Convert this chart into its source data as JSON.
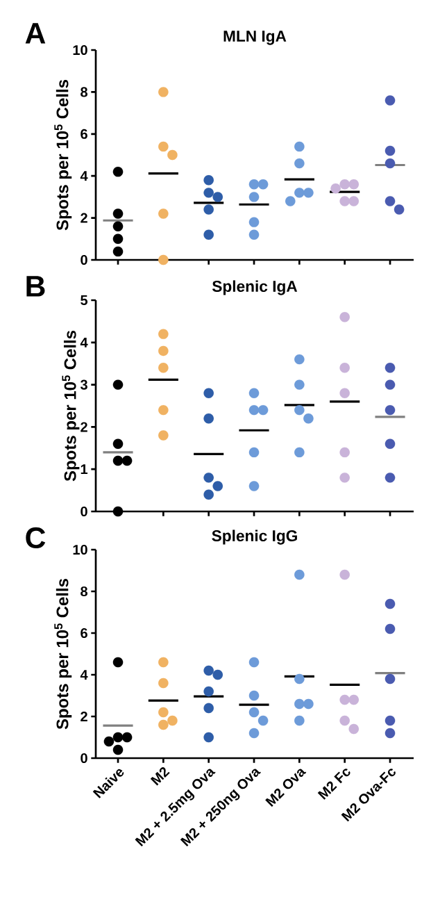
{
  "chart_data": [
    {
      "type": "scatter",
      "title": "MLN IgA",
      "ylabel": "Spots per 10$^{5}$ Cells",
      "annotations": [
        "A"
      ],
      "categories": [
        "Naive",
        "M2",
        "M2 + 2.5mg Ova",
        "M2 + 250ng Ova",
        "M2 Ova",
        "M2 Fc",
        "M2 Ova-Fc"
      ],
      "ylim": [
        0,
        10
      ],
      "yticks": [
        0,
        2,
        4,
        6,
        8,
        10
      ],
      "tick_labels": "y",
      "marker": "circle",
      "series": [
        {
          "x": [
            "Naive",
            "Naive",
            "Naive",
            "Naive",
            "Naive"
          ],
          "values": [
            4.2,
            2.2,
            1.6,
            1.0,
            0.4
          ],
          "color": "#000000"
        },
        {
          "x": [
            "M2",
            "M2",
            "M2",
            "M2",
            "M2"
          ],
          "values": [
            8.0,
            5.4,
            5.0,
            2.2,
            0.0
          ],
          "color": "#f0b262"
        },
        {
          "x": [
            "M2 + 2.5mg Ova",
            "M2 + 2.5mg Ova",
            "M2 + 2.5mg Ova",
            "M2 + 2.5mg Ova",
            "M2 + 2.5mg Ova"
          ],
          "values": [
            3.8,
            3.2,
            3.0,
            2.4,
            1.2
          ],
          "color": "#2e5da8"
        },
        {
          "x": [
            "M2 + 250ng Ova",
            "M2 + 250ng Ova",
            "M2 + 250ng Ova",
            "M2 + 250ng Ova",
            "M2 + 250ng Ova"
          ],
          "values": [
            3.6,
            3.6,
            3.0,
            1.8,
            1.2
          ],
          "color": "#6d9bd9"
        },
        {
          "x": [
            "M2 Ova",
            "M2 Ova",
            "M2 Ova",
            "M2 Ova",
            "M2 Ova"
          ],
          "values": [
            5.4,
            4.6,
            3.2,
            3.2,
            2.8
          ],
          "color": "#6d9bd9"
        },
        {
          "x": [
            "M2 Fc",
            "M2 Fc",
            "M2 Fc",
            "M2 Fc",
            "M2 Fc"
          ],
          "values": [
            3.6,
            3.6,
            3.4,
            2.8,
            2.8
          ],
          "color": "#c9b3d9"
        },
        {
          "x": [
            "M2 Ova-Fc",
            "M2 Ova-Fc",
            "M2 Ova-Fc",
            "M2 Ova-Fc",
            "M2 Ova-Fc"
          ],
          "values": [
            7.6,
            5.2,
            4.6,
            2.8,
            2.4
          ],
          "color": "#4a5bb0"
        },
        {
          "type": "box",
          "colors": [
            "#808080",
            "#000000",
            "#000000",
            "#000000",
            "#000000",
            "#000000",
            "#808080"
          ],
          "boxes": [
            {
              "low": 1.88,
              "q1": 1.88,
              "median": 1.88,
              "q3": 1.88,
              "high": 1.88
            },
            {
              "low": 4.12,
              "q1": 4.12,
              "median": 4.12,
              "q3": 4.12,
              "high": 4.12
            },
            {
              "low": 2.72,
              "q1": 2.72,
              "median": 2.72,
              "q3": 2.72,
              "high": 2.72
            },
            {
              "low": 2.64,
              "q1": 2.64,
              "median": 2.64,
              "q3": 2.64,
              "high": 2.64
            },
            {
              "low": 3.84,
              "q1": 3.84,
              "median": 3.84,
              "q3": 3.84,
              "high": 3.84
            },
            {
              "low": 3.24,
              "q1": 3.24,
              "median": 3.24,
              "q3": 3.24,
              "high": 3.24
            },
            {
              "low": 4.52,
              "q1": 4.52,
              "median": 4.52,
              "q3": 4.52,
              "high": 4.52
            }
          ]
        }
      ]
    },
    {
      "type": "scatter",
      "title": "Splenic IgA",
      "ylabel": "Spots per 10$^{5}$ Cells",
      "annotations": [
        "B"
      ],
      "categories": [
        "Naive",
        "M2",
        "M2 + 2.5mg Ova",
        "M2 + 250ng Ova",
        "M2 Ova",
        "M2 Fc",
        "M2 Ova-Fc"
      ],
      "ylim": [
        0,
        5
      ],
      "yticks": [
        0,
        1,
        2,
        3,
        4,
        5
      ],
      "tick_labels": "y",
      "marker": "circle",
      "series": [
        {
          "x": [
            "Naive",
            "Naive",
            "Naive",
            "Naive",
            "Naive"
          ],
          "values": [
            3.0,
            1.6,
            1.2,
            1.2,
            0.0
          ],
          "color": "#000000"
        },
        {
          "x": [
            "M2",
            "M2",
            "M2",
            "M2",
            "M2"
          ],
          "values": [
            4.2,
            3.8,
            3.4,
            2.4,
            1.8
          ],
          "color": "#f0b262"
        },
        {
          "x": [
            "M2 + 2.5mg Ova",
            "M2 + 2.5mg Ova",
            "M2 + 2.5mg Ova",
            "M2 + 2.5mg Ova",
            "M2 + 2.5mg Ova"
          ],
          "values": [
            2.8,
            2.2,
            0.8,
            0.6,
            0.4
          ],
          "color": "#2e5da8"
        },
        {
          "x": [
            "M2 + 250ng Ova",
            "M2 + 250ng Ova",
            "M2 + 250ng Ova",
            "M2 + 250ng Ova",
            "M2 + 250ng Ova"
          ],
          "values": [
            2.8,
            2.4,
            2.4,
            1.4,
            0.6
          ],
          "color": "#6d9bd9"
        },
        {
          "x": [
            "M2 Ova",
            "M2 Ova",
            "M2 Ova",
            "M2 Ova",
            "M2 Ova"
          ],
          "values": [
            3.6,
            3.0,
            2.4,
            2.2,
            1.4
          ],
          "color": "#6d9bd9"
        },
        {
          "x": [
            "M2 Fc",
            "M2 Fc",
            "M2 Fc",
            "M2 Fc",
            "M2 Fc"
          ],
          "values": [
            4.6,
            3.4,
            2.8,
            1.4,
            0.8
          ],
          "color": "#c9b3d9"
        },
        {
          "x": [
            "M2 Ova-Fc",
            "M2 Ova-Fc",
            "M2 Ova-Fc",
            "M2 Ova-Fc",
            "M2 Ova-Fc"
          ],
          "values": [
            3.4,
            3.0,
            2.4,
            1.6,
            0.8
          ],
          "color": "#4a5bb0"
        },
        {
          "type": "box",
          "colors": [
            "#808080",
            "#000000",
            "#000000",
            "#000000",
            "#000000",
            "#000000",
            "#808080"
          ],
          "boxes": [
            {
              "low": 1.4,
              "q1": 1.4,
              "median": 1.4,
              "q3": 1.4,
              "high": 1.4
            },
            {
              "low": 3.12,
              "q1": 3.12,
              "median": 3.12,
              "q3": 3.12,
              "high": 3.12
            },
            {
              "low": 1.36,
              "q1": 1.36,
              "median": 1.36,
              "q3": 1.36,
              "high": 1.36
            },
            {
              "low": 1.92,
              "q1": 1.92,
              "median": 1.92,
              "q3": 1.92,
              "high": 1.92
            },
            {
              "low": 2.52,
              "q1": 2.52,
              "median": 2.52,
              "q3": 2.52,
              "high": 2.52
            },
            {
              "low": 2.6,
              "q1": 2.6,
              "median": 2.6,
              "q3": 2.6,
              "high": 2.6
            },
            {
              "low": 2.24,
              "q1": 2.24,
              "median": 2.24,
              "q3": 2.24,
              "high": 2.24
            }
          ]
        }
      ]
    },
    {
      "type": "scatter",
      "title": "Splenic IgG",
      "ylabel": "Spots per 10$^{5}$ Cells",
      "annotations": [
        "C"
      ],
      "categories": [
        "Naive",
        "M2",
        "M2 + 2.5mg Ova",
        "M2 + 250ng Ova",
        "M2 Ova",
        "M2 Fc",
        "M2 Ova-Fc"
      ],
      "ylim": [
        0,
        10
      ],
      "yticks": [
        0,
        2,
        4,
        6,
        8,
        10
      ],
      "marker": "circle",
      "series": [
        {
          "x": [
            "Naive",
            "Naive",
            "Naive",
            "Naive",
            "Naive"
          ],
          "values": [
            4.6,
            1.0,
            1.0,
            0.8,
            0.4
          ],
          "color": "#000000"
        },
        {
          "x": [
            "M2",
            "M2",
            "M2",
            "M2",
            "M2"
          ],
          "values": [
            4.6,
            3.6,
            2.2,
            1.8,
            1.6
          ],
          "color": "#f0b262"
        },
        {
          "x": [
            "M2 + 2.5mg Ova",
            "M2 + 2.5mg Ova",
            "M2 + 2.5mg Ova",
            "M2 + 2.5mg Ova",
            "M2 + 2.5mg Ova"
          ],
          "values": [
            4.2,
            4.0,
            3.2,
            2.4,
            1.0
          ],
          "color": "#2e5da8"
        },
        {
          "x": [
            "M2 + 250ng Ova",
            "M2 + 250ng Ova",
            "M2 + 250ng Ova",
            "M2 + 250ng Ova",
            "M2 + 250ng Ova"
          ],
          "values": [
            4.6,
            3.0,
            2.2,
            1.8,
            1.2
          ],
          "color": "#6d9bd9"
        },
        {
          "x": [
            "M2 Ova",
            "M2 Ova",
            "M2 Ova",
            "M2 Ova",
            "M2 Ova"
          ],
          "values": [
            8.8,
            3.8,
            2.6,
            2.6,
            1.8
          ],
          "color": "#6d9bd9"
        },
        {
          "x": [
            "M2 Fc",
            "M2 Fc",
            "M2 Fc",
            "M2 Fc",
            "M2 Fc"
          ],
          "values": [
            8.8,
            2.8,
            2.8,
            1.8,
            1.4
          ],
          "color": "#c9b3d9"
        },
        {
          "x": [
            "M2 Ova-Fc",
            "M2 Ova-Fc",
            "M2 Ova-Fc",
            "M2 Ova-Fc",
            "M2 Ova-Fc"
          ],
          "values": [
            7.4,
            6.2,
            3.8,
            1.8,
            1.2
          ],
          "color": "#4a5bb0"
        },
        {
          "type": "box",
          "colors": [
            "#808080",
            "#000000",
            "#000000",
            "#000000",
            "#000000",
            "#000000",
            "#808080"
          ],
          "boxes": [
            {
              "low": 1.56,
              "q1": 1.56,
              "median": 1.56,
              "q3": 1.56,
              "high": 1.56
            },
            {
              "low": 2.76,
              "q1": 2.76,
              "median": 2.76,
              "q3": 2.76,
              "high": 2.76
            },
            {
              "low": 2.96,
              "q1": 2.96,
              "median": 2.96,
              "q3": 2.96,
              "high": 2.96
            },
            {
              "low": 2.56,
              "q1": 2.56,
              "median": 2.56,
              "q3": 2.56,
              "high": 2.56
            },
            {
              "low": 3.92,
              "q1": 3.92,
              "median": 3.92,
              "q3": 3.92,
              "high": 3.92
            },
            {
              "low": 3.52,
              "q1": 3.52,
              "median": 3.52,
              "q3": 3.52,
              "high": 3.52
            },
            {
              "low": 4.08,
              "q1": 4.08,
              "median": 4.08,
              "q3": 4.08,
              "high": 4.08
            }
          ]
        }
      ]
    }
  ]
}
